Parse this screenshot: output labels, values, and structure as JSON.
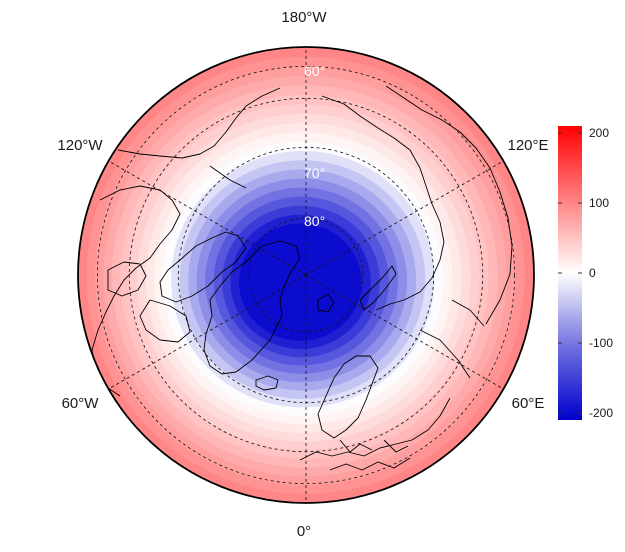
{
  "map": {
    "projection": "north-polar-stereographic",
    "longitude_labels": {
      "top": "180°W",
      "bottom": "0°",
      "upper_left": "120°W",
      "upper_right": "120°E",
      "lower_left": "60°W",
      "lower_right": "60°E"
    },
    "latitude_labels": [
      "60°",
      "70°",
      "80°"
    ],
    "field": {
      "description_units": "",
      "max_value_at_outer_edge": 100,
      "min_value_at_pole_region": -200
    }
  },
  "colorbar": {
    "ticks": [
      "200",
      "100",
      "0",
      "-100",
      "-200"
    ],
    "tick_values": [
      200,
      100,
      0,
      -100,
      -200
    ],
    "range": [
      -210,
      210
    ],
    "colors": {
      "high": "#ff0000",
      "mid": "#ffffff",
      "low": "#0000cc"
    }
  }
}
